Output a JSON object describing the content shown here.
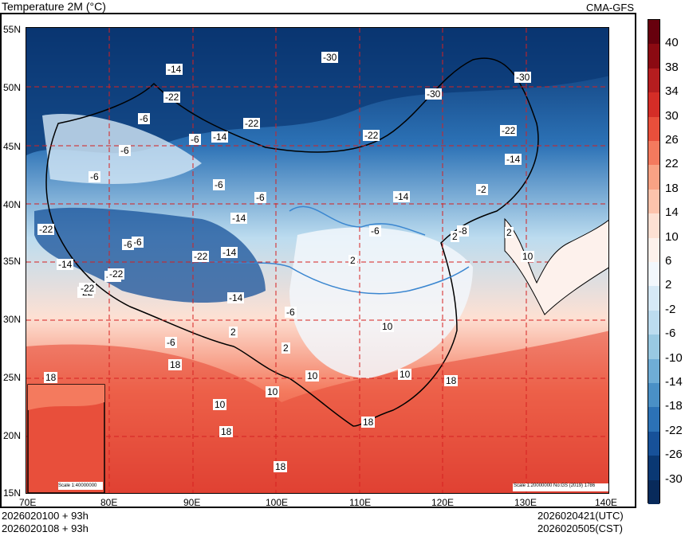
{
  "header": {
    "title": "Temperature  2M (°C)",
    "model": "CMA-GFS"
  },
  "axes": {
    "latitudes": [
      "55N",
      "50N",
      "45N",
      "40N",
      "35N",
      "30N",
      "25N",
      "20N",
      "15N"
    ],
    "longitudes": [
      "70E",
      "80E",
      "90E",
      "100E",
      "110E",
      "120E",
      "130E",
      "140E"
    ]
  },
  "footer": {
    "init_utc": "2026020100 + 93h",
    "init_cst": "2026020108 + 93h",
    "valid_utc": "2026020421(UTC)",
    "valid_cst": "2026020505(CST)"
  },
  "scales": {
    "main": "Scale 1:20000000 No:GS (2019) 1786",
    "inset": "Scale 1:40000000"
  },
  "legend": {
    "labels": [
      "40",
      "38",
      "34",
      "30",
      "26",
      "22",
      "18",
      "14",
      "10",
      "6",
      "2",
      "-2",
      "-6",
      "-10",
      "-14",
      "-18",
      "-22",
      "-26",
      "-30"
    ],
    "colors": [
      "#67000d",
      "#8b0a12",
      "#b51d1f",
      "#d42d27",
      "#e84f3b",
      "#f47a5e",
      "#f9a284",
      "#fcc3ac",
      "#fde0d3",
      "#fdf1ec",
      "#f2f7fc",
      "#d6e9f6",
      "#bcdcef",
      "#99c9e2",
      "#6fadd6",
      "#4a90c6",
      "#2c72b6",
      "#175199",
      "#0a3873",
      "#082a5b"
    ]
  },
  "contour_labels": [
    "-14",
    "-30",
    "-30",
    "-30",
    "-22",
    "-6",
    "-6",
    "-6",
    "-22",
    "-14",
    "-22",
    "-6",
    "-22",
    "-6",
    "-14",
    "-6",
    "-22",
    "-14",
    "-22",
    "-6",
    "-22",
    "-14",
    "-2",
    "2",
    "-14",
    "-22",
    "-14",
    "2",
    "-6",
    "2",
    "10",
    "-6",
    "-14",
    "-22",
    "-22",
    "2",
    "18",
    "2",
    "10",
    "18",
    "10",
    "18",
    "10",
    "18",
    "10",
    "18",
    "10",
    "18",
    "-6",
    "-6",
    "-8"
  ]
}
